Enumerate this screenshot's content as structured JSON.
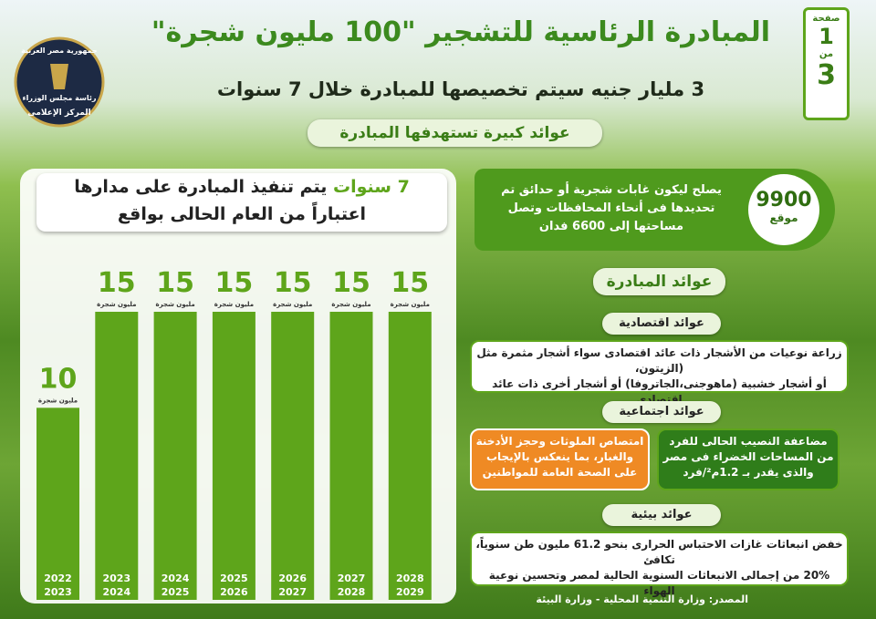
{
  "header": {
    "title": "المبادرة الرئاسية للتشجير \"100 مليون شجرة\"",
    "subtitle": "3 مليار جنيه سيتم تخصيصها للمبادرة خلال 7 سنوات",
    "tagline": "عوائد كبيرة تستهدفها المبادرة"
  },
  "page": {
    "label": "صفحة",
    "current": "1",
    "of": "من",
    "total": "3"
  },
  "logo": {
    "top": "جمهورية مصر العربية",
    "middle": "رئاسة مجلس الوزراء",
    "bottom": "المركز الإعلامى"
  },
  "chart_data": {
    "type": "bar",
    "title": [
      "7 سنوات",
      "يتم تنفيذ المبادرة على مدارها",
      "اعتباراً من العام الحالى بواقع"
    ],
    "categories": [
      [
        "2022",
        "2023"
      ],
      [
        "2023",
        "2024"
      ],
      [
        "2024",
        "2025"
      ],
      [
        "2025",
        "2026"
      ],
      [
        "2026",
        "2027"
      ],
      [
        "2027",
        "2028"
      ],
      [
        "2028",
        "2029"
      ]
    ],
    "values": [
      10,
      15,
      15,
      15,
      15,
      15,
      15
    ],
    "unit": "مليون شجرة",
    "color": "#5ea51b"
  },
  "sites": {
    "value": "9900",
    "unit": "موقع",
    "text": [
      "يصلح ليكون غابات شجرية أو حدائق تم",
      "تحديدها فى أنحاء المحافظات وتصل",
      "مساحتها إلى 6600 فدان"
    ]
  },
  "benefits": {
    "title": "عوائد المبادرة",
    "economic": {
      "title": "عوائد اقتصادية",
      "text": [
        "زراعة نوعيات من الأشجار ذات عائد اقتصادى سواء أشجار مثمرة مثل (الزيتون،",
        "أو أشجار خشبية (ماهوجنى،الجاتروفا) أو أشجار أخرى ذات عائد اقتصادى"
      ]
    },
    "social": {
      "title": "عوائد اجتماعية",
      "items": [
        [
          "مضاعفة النصيب الحالى للفرد",
          "من المساحات الخضراء فى مصر",
          "والذى يقدر بـ 1.2م²/فرد"
        ],
        [
          "امتصاص الملوثات وحجز الأدخنة",
          "والغبار، بما ينعكس بالإيجاب",
          "على الصحة العامة للمواطنين"
        ]
      ]
    },
    "environmental": {
      "title": "عوائد بيئية",
      "text": [
        "خفض انبعاثات غازات الاحتباس الحرارى بنحو 61.2 مليون طن سنوياً، تكافئ",
        "20% من إجمالى الانبعاثات السنوية الحالية لمصر وتحسين نوعية الهواء"
      ]
    }
  },
  "source": "المصدر: وزارة التنمية المحلية - وزارة البيئة"
}
